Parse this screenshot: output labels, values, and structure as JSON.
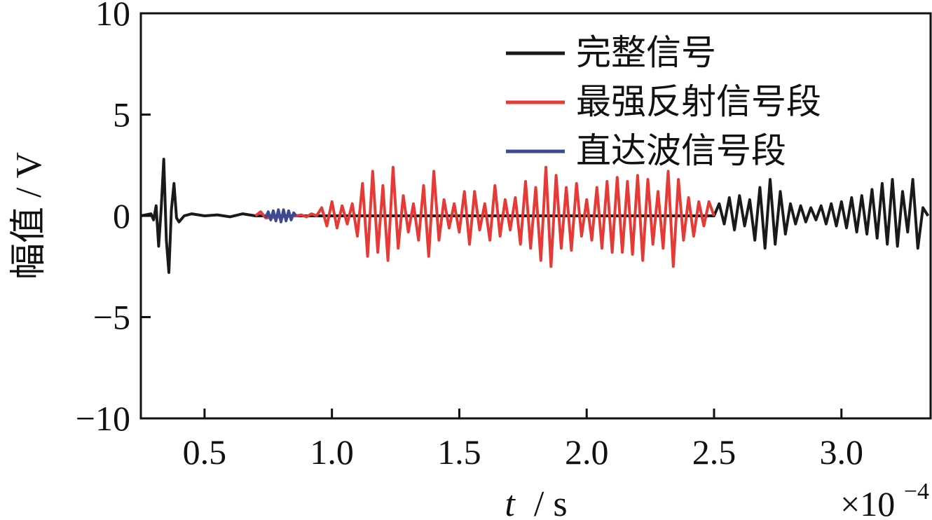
{
  "chart_data": {
    "type": "line",
    "xlabel_var": "t",
    "xlabel_unit": "/ s",
    "ylabel": "幅值 / V",
    "x_multiplier_base": "×10",
    "x_multiplier_exp": "−4",
    "xlim": [
      0.25,
      3.35
    ],
    "ylim": [
      -10,
      10
    ],
    "x_ticks": [
      {
        "value": 0.5,
        "label": "0.5"
      },
      {
        "value": 1.0,
        "label": "1.0"
      },
      {
        "value": 1.5,
        "label": "1.5"
      },
      {
        "value": 2.0,
        "label": "2.0"
      },
      {
        "value": 2.5,
        "label": "2.5"
      },
      {
        "value": 3.0,
        "label": "3.0"
      }
    ],
    "y_ticks": [
      {
        "value": 10,
        "label": "10"
      },
      {
        "value": 5,
        "label": "5"
      },
      {
        "value": 0,
        "label": "0"
      },
      {
        "value": -5,
        "label": "−5"
      },
      {
        "value": -10,
        "label": "−10"
      }
    ],
    "grid": false,
    "legend_position": "top-right",
    "colors": {
      "full": "#1a1a1a",
      "reflect": "#e53a35",
      "direct": "#3b4a91"
    },
    "series": [
      {
        "name": "完整信号",
        "color": "#1a1a1a",
        "x": [
          0.25,
          0.29,
          0.3,
          0.31,
          0.32,
          0.33,
          0.34,
          0.35,
          0.36,
          0.37,
          0.38,
          0.39,
          0.4,
          0.42,
          0.45,
          0.5,
          0.55,
          0.6,
          0.65,
          0.7,
          2.5,
          2.52,
          2.54,
          2.56,
          2.58,
          2.6,
          2.62,
          2.64,
          2.66,
          2.68,
          2.7,
          2.72,
          2.74,
          2.76,
          2.78,
          2.8,
          2.82,
          2.84,
          2.86,
          2.88,
          2.9,
          2.92,
          2.94,
          2.96,
          2.98,
          3.0,
          3.02,
          3.04,
          3.06,
          3.08,
          3.1,
          3.12,
          3.14,
          3.16,
          3.18,
          3.2,
          3.22,
          3.24,
          3.26,
          3.28,
          3.3,
          3.32,
          3.34
        ],
        "y": [
          0,
          0.1,
          -0.2,
          0.5,
          -1.5,
          0.4,
          2.8,
          -1.2,
          -2.8,
          0.3,
          1.6,
          -0.1,
          -0.3,
          0,
          0.1,
          0,
          0.05,
          -0.05,
          0.1,
          0,
          0,
          0.6,
          -0.4,
          0.9,
          -0.7,
          1.0,
          -0.5,
          0.8,
          -1.2,
          1.4,
          -1.6,
          1.8,
          -1.4,
          1.2,
          -0.9,
          0.6,
          -0.4,
          0.5,
          -0.3,
          0.4,
          -0.2,
          0.5,
          -0.4,
          0.6,
          -0.5,
          0.7,
          -0.6,
          0.9,
          -0.8,
          1.0,
          -0.9,
          1.3,
          -1.1,
          1.6,
          -1.4,
          1.8,
          -1.5,
          1.2,
          -0.8,
          1.8,
          -1.6,
          0.4,
          0
        ]
      },
      {
        "name": "最强反射信号段",
        "color": "#e53a35",
        "x": [
          0.7,
          0.72,
          0.74,
          0.86,
          0.88,
          0.9,
          0.92,
          0.94,
          0.96,
          0.98,
          1.0,
          1.02,
          1.04,
          1.06,
          1.08,
          1.1,
          1.12,
          1.14,
          1.16,
          1.18,
          1.2,
          1.22,
          1.24,
          1.26,
          1.28,
          1.3,
          1.32,
          1.34,
          1.36,
          1.38,
          1.4,
          1.42,
          1.44,
          1.46,
          1.48,
          1.5,
          1.52,
          1.54,
          1.56,
          1.58,
          1.6,
          1.62,
          1.64,
          1.66,
          1.68,
          1.7,
          1.72,
          1.74,
          1.76,
          1.78,
          1.8,
          1.82,
          1.84,
          1.86,
          1.88,
          1.9,
          1.92,
          1.94,
          1.96,
          1.98,
          2.0,
          2.02,
          2.04,
          2.06,
          2.08,
          2.1,
          2.12,
          2.14,
          2.16,
          2.18,
          2.2,
          2.22,
          2.24,
          2.26,
          2.28,
          2.3,
          2.32,
          2.34,
          2.36,
          2.38,
          2.4,
          2.42,
          2.44,
          2.46,
          2.48,
          2.5
        ],
        "y": [
          0,
          0.2,
          -0.1,
          0,
          0.05,
          -0.05,
          0.1,
          0,
          0.4,
          -0.5,
          0.7,
          -0.6,
          0.5,
          -0.4,
          0.6,
          -1.0,
          1.6,
          -2.0,
          2.2,
          -1.8,
          1.5,
          -2.2,
          2.4,
          -1.6,
          1.0,
          -0.8,
          0.6,
          -1.2,
          1.5,
          -2.0,
          2.2,
          -1.2,
          0.8,
          -0.6,
          0.6,
          -0.8,
          1.2,
          -1.4,
          1.2,
          -0.7,
          0.6,
          -1.2,
          1.5,
          -1.0,
          0.8,
          -0.7,
          0.9,
          -1.4,
          1.7,
          -1.6,
          1.4,
          -2.2,
          2.4,
          -2.5,
          2.0,
          -1.6,
          1.4,
          -1.7,
          1.6,
          -1.0,
          0.8,
          -1.2,
          1.4,
          -1.6,
          1.7,
          -1.8,
          1.9,
          -1.8,
          1.7,
          -1.9,
          2.0,
          -2.2,
          1.8,
          -1.4,
          1.2,
          -1.6,
          2.2,
          -2.5,
          1.8,
          -1.2,
          0.9,
          -1.0,
          0.7,
          -0.5,
          0.7,
          0
        ]
      },
      {
        "name": "直达波信号段",
        "color": "#3b4a91",
        "x": [
          0.74,
          0.75,
          0.76,
          0.77,
          0.78,
          0.79,
          0.8,
          0.81,
          0.82,
          0.83,
          0.84,
          0.85,
          0.86
        ],
        "y": [
          -0.1,
          0.2,
          -0.2,
          0.25,
          -0.25,
          0.3,
          -0.3,
          0.3,
          -0.25,
          0.25,
          -0.2,
          0.15,
          0
        ]
      }
    ]
  }
}
